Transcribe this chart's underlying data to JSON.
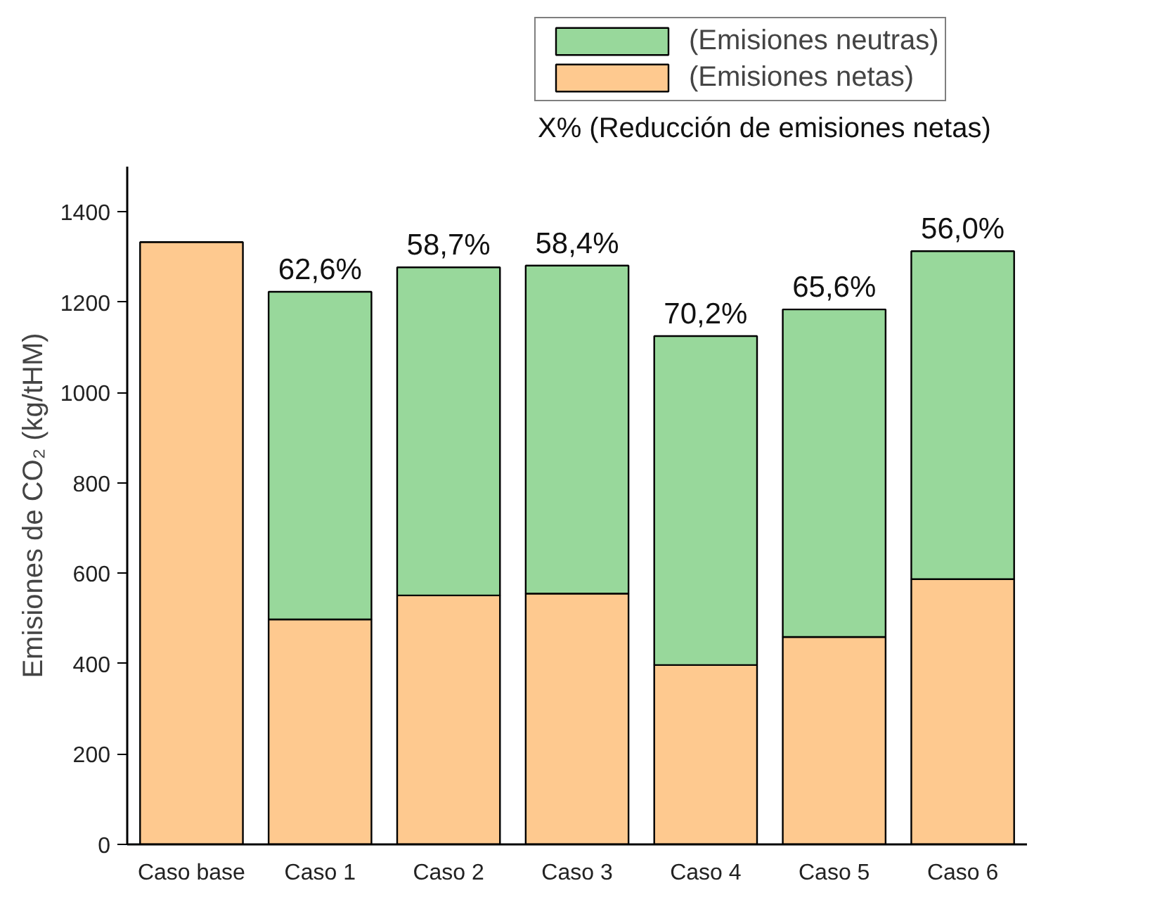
{
  "chart_data": {
    "type": "bar",
    "stacked": true,
    "ylabel": "Emisiones de CO₂ (kg/tHM)",
    "categories": [
      "Caso base",
      "Caso 1",
      "Caso 2",
      "Caso 3",
      "Caso 4",
      "Caso 5",
      "Caso 6"
    ],
    "series": [
      {
        "name": "(Emisiones netas)",
        "color": "#fec98f",
        "values": [
          1333,
          498,
          551,
          555,
          397,
          459,
          587
        ]
      },
      {
        "name": "(Emisiones neutras)",
        "color": "#98d89b",
        "values": [
          null,
          725,
          726,
          726,
          728,
          725,
          726
        ]
      }
    ],
    "ylim": [
      0,
      1500
    ],
    "yticks": [
      0,
      200,
      400,
      600,
      800,
      1000,
      1200,
      1400
    ],
    "grid": false,
    "legend": "top right",
    "annotations": [
      "X%   (Reducción de emisiones netas)",
      {
        "text": "62,6%",
        "x": "Caso 1",
        "y": 1223
      },
      {
        "text": "58,7%",
        "x": "Caso 2",
        "y": 1277
      },
      {
        "text": "58,4%",
        "x": "Caso 3",
        "y": 1281
      },
      {
        "text": "70,2%",
        "x": "Caso 4",
        "y": 1125
      },
      {
        "text": "65,6%",
        "x": "Caso 5",
        "y": 1184
      },
      {
        "text": "56,0%",
        "x": "Caso 6",
        "y": 1313
      }
    ]
  }
}
